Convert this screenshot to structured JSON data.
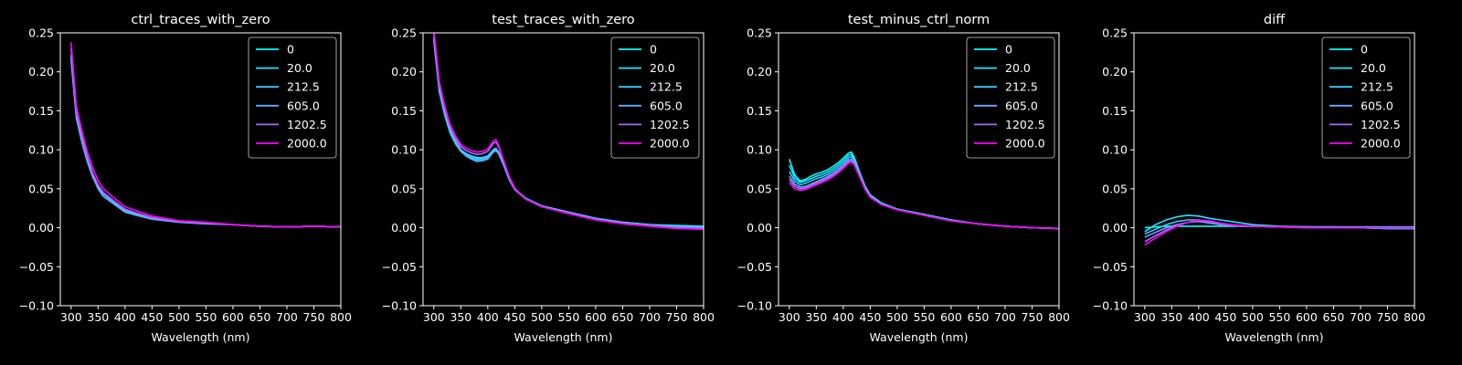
{
  "figure": {
    "background": "#000000",
    "foreground": "#ffffff"
  },
  "series_colors": [
    "#00ffff",
    "#19e6ff",
    "#33ccff",
    "#66aaff",
    "#aa66ff",
    "#ff00ff"
  ],
  "chart_data": [
    {
      "type": "line",
      "title": "ctrl_traces_with_zero",
      "xlabel": "Wavelength (nm)",
      "ylabel": "",
      "xlim": [
        280,
        800
      ],
      "ylim": [
        -0.1,
        0.25
      ],
      "xticks": [
        "300",
        "350",
        "400",
        "450",
        "500",
        "550",
        "600",
        "650",
        "700",
        "750",
        "800"
      ],
      "yticks": [
        "−0.10",
        "−0.05",
        "0.00",
        "0.05",
        "0.10",
        "0.15",
        "0.20",
        "0.25"
      ],
      "legend": {
        "position": "top-right",
        "entries": [
          "0",
          "20.0",
          "212.5",
          "605.0",
          "1202.5",
          "2000.0"
        ]
      },
      "grid": false,
      "x": [
        300,
        310,
        320,
        330,
        340,
        350,
        360,
        380,
        400,
        420,
        450,
        500,
        550,
        600,
        650,
        700,
        750,
        800
      ],
      "series": [
        {
          "name": "0",
          "values": [
            0.215,
            0.14,
            0.11,
            0.085,
            0.065,
            0.052,
            0.043,
            0.032,
            0.022,
            0.017,
            0.012,
            0.008,
            0.006,
            0.004,
            0.002,
            0.001,
            0.002,
            0.001
          ]
        },
        {
          "name": "20.0",
          "values": [
            0.22,
            0.142,
            0.112,
            0.087,
            0.067,
            0.053,
            0.044,
            0.033,
            0.023,
            0.018,
            0.012,
            0.008,
            0.006,
            0.004,
            0.002,
            0.001,
            0.002,
            0.001
          ]
        },
        {
          "name": "212.5",
          "values": [
            0.218,
            0.141,
            0.111,
            0.086,
            0.066,
            0.052,
            0.043,
            0.032,
            0.022,
            0.017,
            0.012,
            0.008,
            0.006,
            0.004,
            0.002,
            0.001,
            0.002,
            0.001
          ]
        },
        {
          "name": "605.0",
          "values": [
            0.222,
            0.143,
            0.113,
            0.088,
            0.066,
            0.05,
            0.04,
            0.03,
            0.02,
            0.016,
            0.011,
            0.007,
            0.005,
            0.004,
            0.002,
            0.001,
            0.002,
            0.001
          ]
        },
        {
          "name": "1202.5",
          "values": [
            0.23,
            0.148,
            0.118,
            0.092,
            0.07,
            0.055,
            0.045,
            0.034,
            0.024,
            0.019,
            0.013,
            0.008,
            0.006,
            0.004,
            0.002,
            0.001,
            0.002,
            0.001
          ]
        },
        {
          "name": "2000.0",
          "values": [
            0.238,
            0.155,
            0.125,
            0.098,
            0.077,
            0.061,
            0.05,
            0.038,
            0.027,
            0.022,
            0.015,
            0.009,
            0.007,
            0.004,
            0.002,
            0.001,
            0.002,
            0.001
          ]
        }
      ]
    },
    {
      "type": "line",
      "title": "test_traces_with_zero",
      "xlabel": "Wavelength (nm)",
      "ylabel": "",
      "xlim": [
        280,
        800
      ],
      "ylim": [
        -0.1,
        0.25
      ],
      "xticks": [
        "300",
        "350",
        "400",
        "450",
        "500",
        "550",
        "600",
        "650",
        "700",
        "750",
        "800"
      ],
      "yticks": [
        "−0.10",
        "−0.05",
        "0.00",
        "0.05",
        "0.10",
        "0.15",
        "0.20",
        "0.25"
      ],
      "legend": {
        "position": "top-right",
        "entries": [
          "0",
          "20.0",
          "212.5",
          "605.0",
          "1202.5",
          "2000.0"
        ]
      },
      "grid": false,
      "x": [
        300,
        310,
        320,
        330,
        340,
        350,
        360,
        370,
        380,
        390,
        400,
        410,
        415,
        420,
        430,
        440,
        450,
        470,
        500,
        550,
        600,
        650,
        700,
        750,
        800
      ],
      "series": [
        {
          "name": "0",
          "values": [
            0.24,
            0.175,
            0.145,
            0.122,
            0.108,
            0.098,
            0.093,
            0.09,
            0.088,
            0.088,
            0.09,
            0.098,
            0.1,
            0.096,
            0.08,
            0.062,
            0.05,
            0.038,
            0.028,
            0.02,
            0.012,
            0.007,
            0.004,
            0.002,
            0.001
          ]
        },
        {
          "name": "20.0",
          "values": [
            0.242,
            0.177,
            0.147,
            0.124,
            0.11,
            0.1,
            0.095,
            0.092,
            0.09,
            0.09,
            0.092,
            0.1,
            0.102,
            0.097,
            0.081,
            0.063,
            0.05,
            0.038,
            0.028,
            0.02,
            0.012,
            0.007,
            0.004,
            0.003,
            0.002
          ]
        },
        {
          "name": "212.5",
          "values": [
            0.243,
            0.178,
            0.148,
            0.125,
            0.11,
            0.098,
            0.092,
            0.088,
            0.085,
            0.086,
            0.088,
            0.097,
            0.099,
            0.095,
            0.079,
            0.061,
            0.049,
            0.037,
            0.027,
            0.019,
            0.011,
            0.006,
            0.003,
            0.002,
            0.001
          ]
        },
        {
          "name": "605.0",
          "values": [
            0.245,
            0.18,
            0.15,
            0.127,
            0.112,
            0.1,
            0.094,
            0.09,
            0.087,
            0.088,
            0.09,
            0.099,
            0.101,
            0.097,
            0.08,
            0.062,
            0.049,
            0.037,
            0.027,
            0.019,
            0.011,
            0.006,
            0.003,
            0.001,
            0.0
          ]
        },
        {
          "name": "1202.5",
          "values": [
            0.25,
            0.183,
            0.153,
            0.13,
            0.115,
            0.104,
            0.099,
            0.096,
            0.094,
            0.095,
            0.098,
            0.108,
            0.11,
            0.104,
            0.084,
            0.064,
            0.05,
            0.037,
            0.027,
            0.019,
            0.011,
            0.006,
            0.003,
            0.0,
            -0.001
          ]
        },
        {
          "name": "2000.0",
          "values": [
            0.255,
            0.188,
            0.157,
            0.133,
            0.118,
            0.107,
            0.102,
            0.099,
            0.097,
            0.098,
            0.101,
            0.111,
            0.113,
            0.106,
            0.085,
            0.065,
            0.051,
            0.037,
            0.027,
            0.018,
            0.01,
            0.005,
            0.002,
            -0.001,
            -0.002
          ]
        }
      ]
    },
    {
      "type": "line",
      "title": "test_minus_ctrl_norm",
      "xlabel": "Wavelength (nm)",
      "ylabel": "",
      "xlim": [
        280,
        800
      ],
      "ylim": [
        -0.1,
        0.25
      ],
      "xticks": [
        "300",
        "350",
        "400",
        "450",
        "500",
        "550",
        "600",
        "650",
        "700",
        "750",
        "800"
      ],
      "yticks": [
        "−0.10",
        "−0.05",
        "0.00",
        "0.05",
        "0.10",
        "0.15",
        "0.20",
        "0.25"
      ],
      "legend": {
        "position": "top-right",
        "entries": [
          "0",
          "20.0",
          "212.5",
          "605.0",
          "1202.5",
          "2000.0"
        ]
      },
      "grid": false,
      "x": [
        300,
        310,
        320,
        330,
        340,
        350,
        360,
        370,
        380,
        390,
        400,
        410,
        415,
        420,
        430,
        440,
        450,
        470,
        500,
        550,
        600,
        650,
        700,
        750,
        800
      ],
      "series": [
        {
          "name": "0",
          "values": [
            0.088,
            0.068,
            0.06,
            0.062,
            0.066,
            0.069,
            0.071,
            0.074,
            0.078,
            0.083,
            0.089,
            0.096,
            0.097,
            0.091,
            0.072,
            0.054,
            0.042,
            0.032,
            0.024,
            0.017,
            0.01,
            0.005,
            0.002,
            0.0,
            -0.001
          ]
        },
        {
          "name": "20.0",
          "values": [
            0.08,
            0.064,
            0.058,
            0.06,
            0.063,
            0.066,
            0.068,
            0.071,
            0.075,
            0.08,
            0.086,
            0.093,
            0.094,
            0.089,
            0.071,
            0.053,
            0.041,
            0.031,
            0.024,
            0.017,
            0.01,
            0.005,
            0.002,
            0.0,
            -0.001
          ]
        },
        {
          "name": "212.5",
          "values": [
            0.072,
            0.06,
            0.055,
            0.057,
            0.06,
            0.063,
            0.065,
            0.068,
            0.072,
            0.077,
            0.083,
            0.09,
            0.091,
            0.087,
            0.07,
            0.052,
            0.041,
            0.031,
            0.023,
            0.016,
            0.009,
            0.005,
            0.002,
            0.0,
            -0.001
          ]
        },
        {
          "name": "605.0",
          "values": [
            0.066,
            0.056,
            0.052,
            0.053,
            0.056,
            0.059,
            0.062,
            0.065,
            0.069,
            0.074,
            0.08,
            0.087,
            0.088,
            0.084,
            0.068,
            0.051,
            0.04,
            0.03,
            0.023,
            0.016,
            0.009,
            0.005,
            0.002,
            0.0,
            -0.001
          ]
        },
        {
          "name": "1202.5",
          "values": [
            0.062,
            0.053,
            0.05,
            0.051,
            0.054,
            0.057,
            0.06,
            0.063,
            0.067,
            0.072,
            0.078,
            0.085,
            0.086,
            0.082,
            0.067,
            0.05,
            0.04,
            0.03,
            0.023,
            0.016,
            0.009,
            0.005,
            0.002,
            0.0,
            -0.001
          ]
        },
        {
          "name": "2000.0",
          "values": [
            0.058,
            0.05,
            0.048,
            0.049,
            0.052,
            0.055,
            0.058,
            0.061,
            0.065,
            0.07,
            0.076,
            0.083,
            0.084,
            0.081,
            0.066,
            0.05,
            0.039,
            0.03,
            0.023,
            0.016,
            0.009,
            0.005,
            0.002,
            0.0,
            -0.001
          ]
        }
      ]
    },
    {
      "type": "line",
      "title": "diff",
      "xlabel": "Wavelength (nm)",
      "ylabel": "",
      "xlim": [
        280,
        800
      ],
      "ylim": [
        -0.1,
        0.25
      ],
      "xticks": [
        "300",
        "350",
        "400",
        "450",
        "500",
        "550",
        "600",
        "650",
        "700",
        "750",
        "800"
      ],
      "yticks": [
        "−0.10",
        "−0.05",
        "0.00",
        "0.05",
        "0.10",
        "0.15",
        "0.20",
        "0.25"
      ],
      "legend": {
        "position": "top-right",
        "entries": [
          "0",
          "20.0",
          "212.5",
          "605.0",
          "1202.5",
          "2000.0"
        ]
      },
      "grid": false,
      "x": [
        300,
        320,
        340,
        360,
        380,
        400,
        420,
        440,
        460,
        480,
        500,
        550,
        600,
        650,
        700,
        750,
        800
      ],
      "series": [
        {
          "name": "0",
          "values": [
            0.0,
            0.001,
            0.002,
            0.002,
            0.002,
            0.002,
            0.002,
            0.002,
            0.002,
            0.002,
            0.002,
            0.001,
            0.001,
            0.001,
            0.001,
            0.001,
            0.001
          ]
        },
        {
          "name": "20.0",
          "values": [
            -0.005,
            0.004,
            0.01,
            0.014,
            0.016,
            0.015,
            0.012,
            0.01,
            0.008,
            0.006,
            0.004,
            0.002,
            0.001,
            0.001,
            0.0,
            -0.001,
            -0.001
          ]
        },
        {
          "name": "212.5",
          "values": [
            -0.008,
            -0.002,
            0.004,
            0.008,
            0.01,
            0.01,
            0.008,
            0.005,
            0.004,
            0.003,
            0.002,
            0.001,
            0.001,
            0.0,
            0.0,
            -0.001,
            -0.001
          ]
        },
        {
          "name": "605.0",
          "values": [
            -0.012,
            -0.006,
            0.0,
            0.004,
            0.007,
            0.008,
            0.006,
            0.004,
            0.003,
            0.002,
            0.002,
            0.001,
            0.001,
            0.0,
            0.0,
            -0.001,
            -0.001
          ]
        },
        {
          "name": "1202.5",
          "values": [
            -0.018,
            -0.01,
            -0.003,
            0.003,
            0.007,
            0.009,
            0.008,
            0.005,
            0.003,
            0.002,
            0.002,
            0.001,
            0.0,
            0.0,
            0.0,
            0.0,
            0.0
          ]
        },
        {
          "name": "2000.0",
          "values": [
            -0.022,
            -0.013,
            -0.005,
            0.002,
            0.007,
            0.01,
            0.009,
            0.006,
            0.004,
            0.003,
            0.002,
            0.001,
            0.0,
            0.0,
            0.0,
            0.0,
            0.0
          ]
        }
      ]
    }
  ]
}
